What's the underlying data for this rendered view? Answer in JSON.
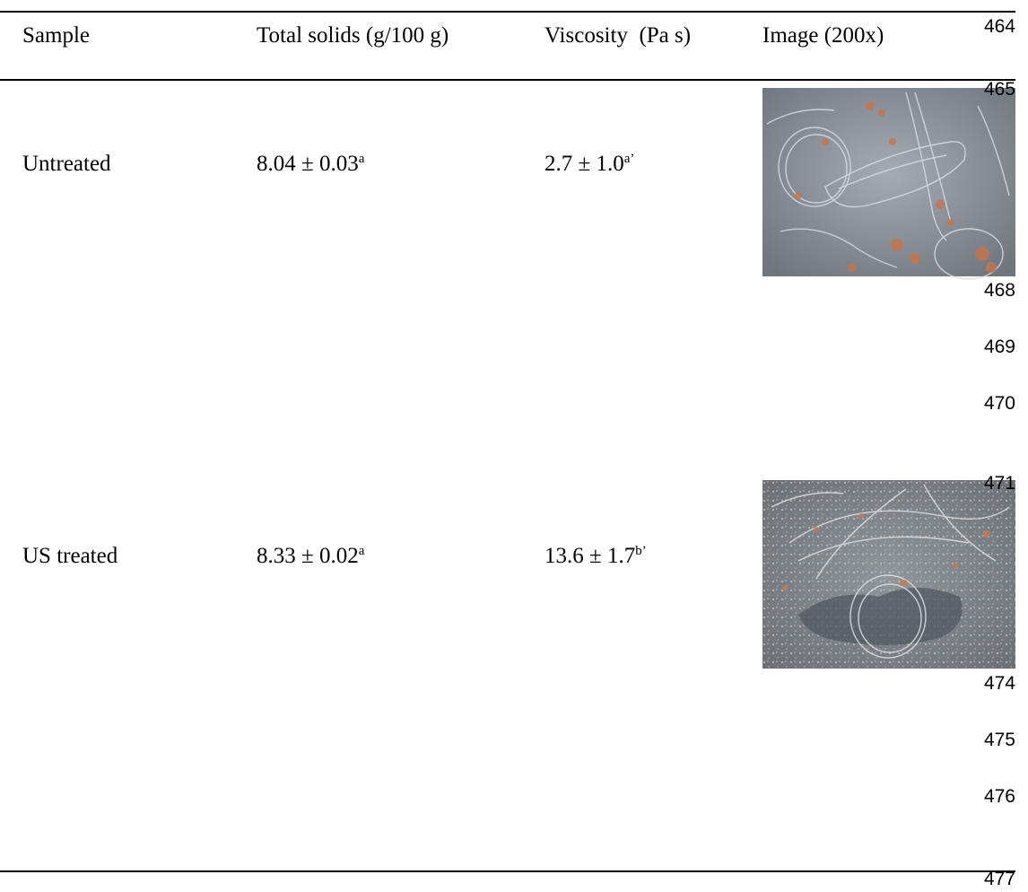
{
  "table": {
    "headers": [
      "Sample",
      "Total solids (g/100 g)",
      "Viscosity  (Pa s)",
      "Image (200x)"
    ],
    "rows": [
      {
        "sample": "Untreated",
        "solids": "8.04 ± 0.03",
        "solids_sup": "a",
        "viscosity": "2.7 ± 1.0",
        "viscosity_sup": "a’"
      },
      {
        "sample": "US treated",
        "solids": "8.33 ± 0.02",
        "solids_sup": "a",
        "viscosity": "13.6 ± 1.7",
        "viscosity_sup": "b’"
      }
    ]
  },
  "line_numbers": {
    "first": "464",
    "partial_1": "465",
    "l468": "468",
    "l469": "469",
    "l470": "470",
    "partial_2": "471",
    "l474": "474",
    "l475": "475",
    "l476": "476",
    "l477": "477"
  }
}
